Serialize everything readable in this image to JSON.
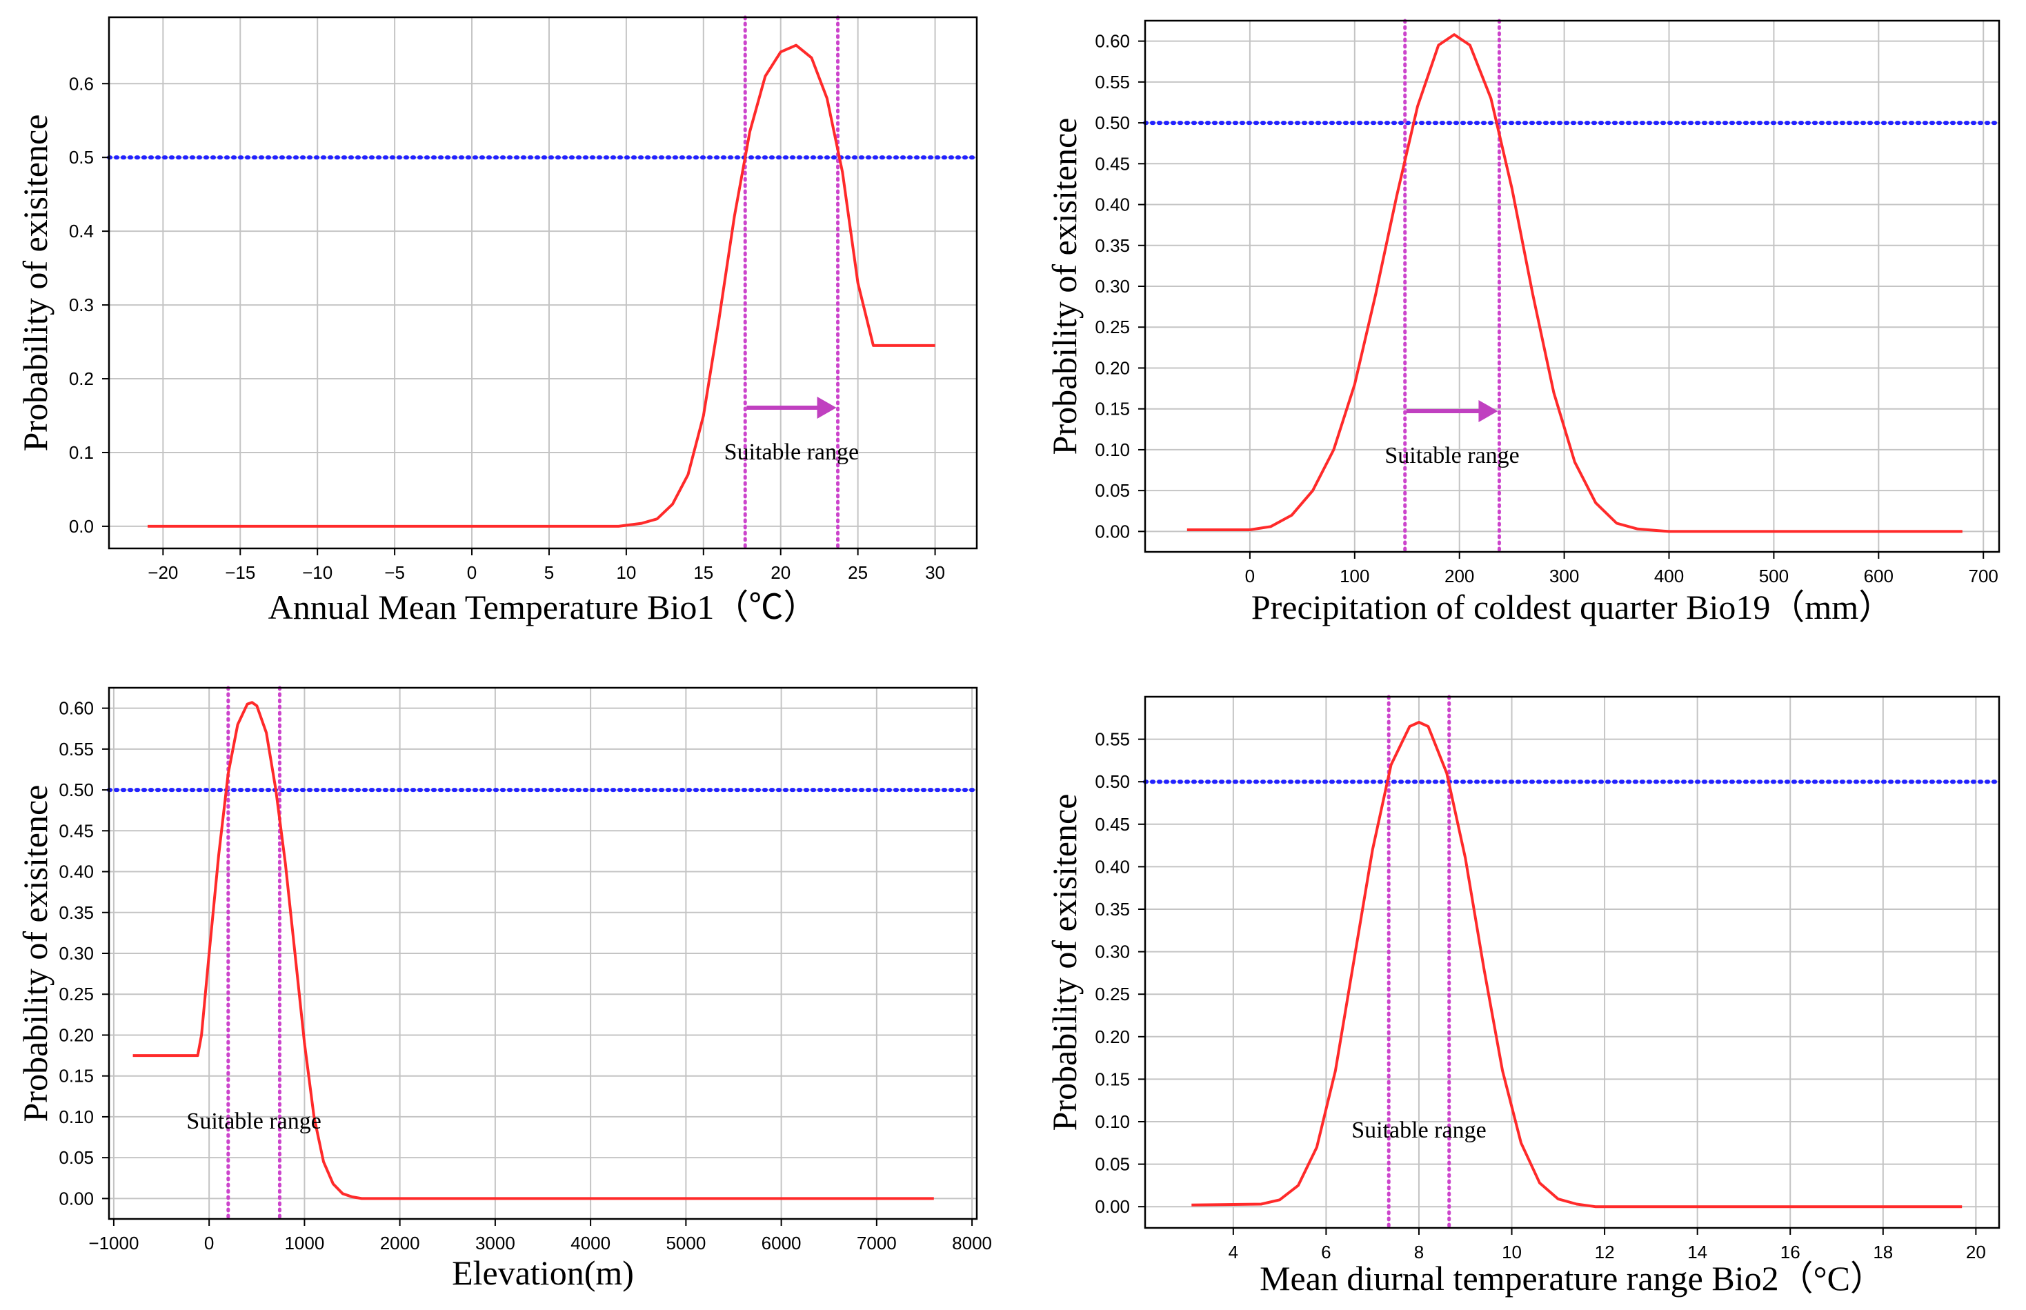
{
  "colors": {
    "curve": "#ff2a2a",
    "threshold": "#2222ff",
    "range_line": "#cc44cc",
    "arrow": "#c040c0",
    "grid": "#c4c4c4",
    "frame": "#000000"
  },
  "chart_data": [
    {
      "type": "line",
      "xlabel": "Annual Mean Temperature Bio1（℃）",
      "ylabel": "Probability of exisitence",
      "xlim": [
        -23.5,
        32.7
      ],
      "ylim": [
        -0.03,
        0.69
      ],
      "xticks": [
        -20,
        -15,
        -10,
        -5,
        0,
        5,
        10,
        15,
        20,
        25,
        30
      ],
      "xtick_labels": [
        "−20",
        "−15",
        "−10",
        "−5",
        "0",
        "5",
        "10",
        "15",
        "20",
        "25",
        "30"
      ],
      "yticks": [
        0.0,
        0.1,
        0.2,
        0.3,
        0.4,
        0.5,
        0.6
      ],
      "ytick_labels": [
        "0.0",
        "0.1",
        "0.2",
        "0.3",
        "0.4",
        "0.5",
        "0.6"
      ],
      "threshold": 0.5,
      "suitable_range": [
        17.7,
        23.7
      ],
      "annotation": "Suitable range",
      "arrow": true,
      "grid": true,
      "x": [
        -21,
        9.5,
        11,
        12,
        13,
        14,
        15,
        16,
        17,
        18,
        19,
        20,
        21,
        22,
        23,
        24,
        25,
        26,
        30
      ],
      "y": [
        0.0,
        0.0,
        0.004,
        0.01,
        0.03,
        0.07,
        0.15,
        0.28,
        0.42,
        0.535,
        0.61,
        0.643,
        0.652,
        0.635,
        0.58,
        0.48,
        0.33,
        0.245,
        0.245
      ]
    },
    {
      "type": "line",
      "xlabel": "Precipitation of coldest quarter Bio19（mm）",
      "ylabel": "Probability of exisitence",
      "xlim": [
        -100,
        715
      ],
      "ylim": [
        -0.025,
        0.625
      ],
      "xticks": [
        0,
        100,
        200,
        300,
        400,
        500,
        600,
        700
      ],
      "xtick_labels": [
        "0",
        "100",
        "200",
        "300",
        "400",
        "500",
        "600",
        "700"
      ],
      "yticks": [
        0.0,
        0.05,
        0.1,
        0.15,
        0.2,
        0.25,
        0.3,
        0.35,
        0.4,
        0.45,
        0.5,
        0.55,
        0.6
      ],
      "ytick_labels": [
        "0.00",
        "0.05",
        "0.10",
        "0.15",
        "0.20",
        "0.25",
        "0.30",
        "0.35",
        "0.40",
        "0.45",
        "0.50",
        "0.55",
        "0.60"
      ],
      "threshold": 0.5,
      "suitable_range": [
        148,
        238
      ],
      "annotation": "Suitable range",
      "arrow": true,
      "grid": true,
      "x": [
        -60,
        0,
        20,
        40,
        60,
        80,
        100,
        120,
        140,
        160,
        180,
        195,
        210,
        230,
        250,
        270,
        290,
        310,
        330,
        350,
        370,
        390,
        400,
        680
      ],
      "y": [
        0.002,
        0.002,
        0.006,
        0.02,
        0.05,
        0.1,
        0.18,
        0.29,
        0.41,
        0.52,
        0.595,
        0.608,
        0.595,
        0.53,
        0.42,
        0.29,
        0.17,
        0.085,
        0.035,
        0.01,
        0.003,
        0.001,
        0.0,
        0.0
      ]
    },
    {
      "type": "line",
      "xlabel": "Elevation(m)",
      "ylabel": "Probability of exisitence",
      "xlim": [
        -1050,
        8050
      ],
      "ylim": [
        -0.025,
        0.625
      ],
      "xticks": [
        -1000,
        0,
        1000,
        2000,
        3000,
        4000,
        5000,
        6000,
        7000,
        8000
      ],
      "xtick_labels": [
        "−1000",
        "0",
        "1000",
        "2000",
        "3000",
        "4000",
        "5000",
        "6000",
        "7000",
        "8000"
      ],
      "yticks": [
        0.0,
        0.05,
        0.1,
        0.15,
        0.2,
        0.25,
        0.3,
        0.35,
        0.4,
        0.45,
        0.5,
        0.55,
        0.6
      ],
      "ytick_labels": [
        "0.00",
        "0.05",
        "0.10",
        "0.15",
        "0.20",
        "0.25",
        "0.30",
        "0.35",
        "0.40",
        "0.45",
        "0.50",
        "0.55",
        "0.60"
      ],
      "threshold": 0.5,
      "suitable_range": [
        200,
        740
      ],
      "annotation": "Suitable range",
      "arrow": false,
      "grid": true,
      "x": [
        -800,
        -120,
        -80,
        0,
        100,
        200,
        300,
        400,
        450,
        500,
        600,
        700,
        800,
        900,
        1000,
        1100,
        1200,
        1300,
        1400,
        1500,
        1600,
        1700,
        7600
      ],
      "y": [
        0.175,
        0.175,
        0.2,
        0.3,
        0.42,
        0.52,
        0.58,
        0.605,
        0.607,
        0.603,
        0.57,
        0.5,
        0.41,
        0.3,
        0.19,
        0.1,
        0.045,
        0.018,
        0.006,
        0.002,
        0.0,
        0.0,
        0.0
      ]
    },
    {
      "type": "line",
      "xlabel": "Mean diurnal temperature range  Bio2（°C）",
      "ylabel": "Probability of exisitence",
      "xlim": [
        2.1,
        20.5
      ],
      "ylim": [
        -0.025,
        0.6
      ],
      "xticks": [
        4,
        6,
        8,
        10,
        12,
        14,
        16,
        18,
        20
      ],
      "xtick_labels": [
        "4",
        "6",
        "8",
        "10",
        "12",
        "14",
        "16",
        "18",
        "20"
      ],
      "yticks": [
        0.0,
        0.05,
        0.1,
        0.15,
        0.2,
        0.25,
        0.3,
        0.35,
        0.4,
        0.45,
        0.5,
        0.55
      ],
      "ytick_labels": [
        "0.00",
        "0.05",
        "0.10",
        "0.15",
        "0.20",
        "0.25",
        "0.30",
        "0.35",
        "0.40",
        "0.45",
        "0.50",
        "0.55"
      ],
      "threshold": 0.5,
      "suitable_range": [
        7.35,
        8.65
      ],
      "annotation": "Suitable range",
      "arrow": false,
      "grid": true,
      "x": [
        3.1,
        4.6,
        5.0,
        5.4,
        5.8,
        6.2,
        6.6,
        7.0,
        7.4,
        7.8,
        8.0,
        8.2,
        8.6,
        9.0,
        9.4,
        9.8,
        10.2,
        10.6,
        11.0,
        11.4,
        11.8,
        19.7
      ],
      "y": [
        0.002,
        0.003,
        0.008,
        0.025,
        0.07,
        0.16,
        0.29,
        0.42,
        0.52,
        0.565,
        0.57,
        0.565,
        0.51,
        0.41,
        0.28,
        0.16,
        0.075,
        0.028,
        0.009,
        0.003,
        0.0,
        0.0
      ]
    }
  ]
}
